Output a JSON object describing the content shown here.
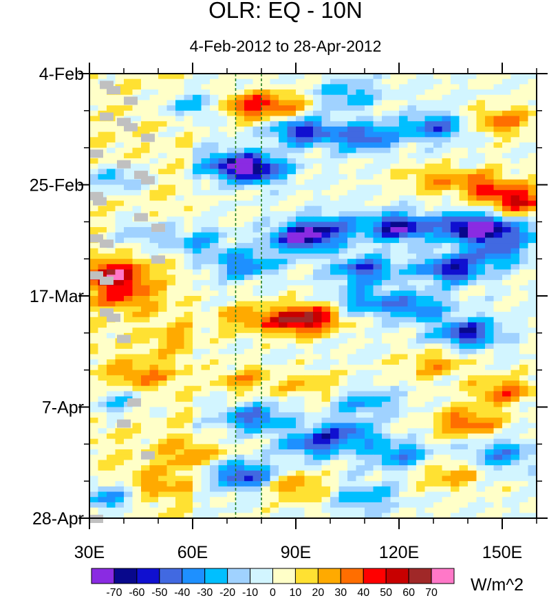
{
  "chart_data": {
    "type": "heatmap",
    "title": "OLR: EQ - 10N",
    "subtitle": "4-Feb-2012 to 28-Apr-2012",
    "x_axis": {
      "ticks": [
        30,
        60,
        90,
        120,
        150
      ],
      "tick_labels": [
        "30E",
        "60E",
        "90E",
        "120E",
        "150E"
      ],
      "range": [
        30,
        160
      ],
      "minor_step": 10
    },
    "y_axis": {
      "reversed": true,
      "range": [
        "2012-02-04",
        "2012-04-28"
      ],
      "ticks": [
        "2012-02-04",
        "2012-02-25",
        "2012-03-17",
        "2012-04-07",
        "2012-04-28"
      ],
      "tick_labels": [
        "4-Feb",
        "25-Feb",
        "17-Mar",
        "7-Apr",
        "28-Apr"
      ],
      "minor_step_days": 7
    },
    "reference_lines": [
      {
        "orientation": "vertical",
        "x": 72.5,
        "style": "dashed",
        "color": "#1e7d1e"
      },
      {
        "orientation": "vertical",
        "x": 80,
        "style": "dashed",
        "color": "#1e7d1e"
      }
    ],
    "colorbar": {
      "units": "W/m^2",
      "labels": [
        "-70",
        "-60",
        "-50",
        "-40",
        "-30",
        "-20",
        "-10",
        "0",
        "10",
        "20",
        "30",
        "40",
        "50",
        "60",
        "70"
      ],
      "colors": [
        "#8a2be2",
        "#08088c",
        "#1010d0",
        "#4169e1",
        "#1e90ff",
        "#00bfff",
        "#a0d2ff",
        "#d2f5ff",
        "#ffffc8",
        "#ffe132",
        "#ffaa00",
        "#ff6e00",
        "#ff0000",
        "#c80000",
        "#a02828",
        "#ff78c8"
      ]
    },
    "missing_color": "#c0c0c0",
    "features": [
      {
        "lon": 75,
        "day": 6,
        "value": 35
      },
      {
        "lon": 85,
        "day": 6,
        "value": 30
      },
      {
        "lon": 60,
        "day": 6,
        "value": -30
      },
      {
        "lon": 105,
        "day": 4,
        "value": -30
      },
      {
        "lon": 92,
        "day": 11,
        "value": -55
      },
      {
        "lon": 110,
        "day": 12,
        "value": -50
      },
      {
        "lon": 130,
        "day": 10,
        "value": -45
      },
      {
        "lon": 150,
        "day": 9,
        "value": 35
      },
      {
        "lon": 78,
        "day": 18,
        "value": -65
      },
      {
        "lon": 70,
        "day": 17,
        "value": -35
      },
      {
        "lon": 145,
        "day": 21,
        "value": 35
      },
      {
        "lon": 155,
        "day": 24,
        "value": 50
      },
      {
        "lon": 130,
        "day": 20,
        "value": 25
      },
      {
        "lon": 100,
        "day": 29,
        "value": -35
      },
      {
        "lon": 92,
        "day": 31,
        "value": -70
      },
      {
        "lon": 120,
        "day": 29,
        "value": -70
      },
      {
        "lon": 140,
        "day": 29,
        "value": -65
      },
      {
        "lon": 150,
        "day": 30,
        "value": -45
      },
      {
        "lon": 60,
        "day": 32,
        "value": -30
      },
      {
        "lon": 75,
        "day": 36,
        "value": -40
      },
      {
        "lon": 110,
        "day": 37,
        "value": -50
      },
      {
        "lon": 135,
        "day": 37,
        "value": -60
      },
      {
        "lon": 148,
        "day": 34,
        "value": -35
      },
      {
        "lon": 37,
        "day": 38,
        "value": 55
      },
      {
        "lon": 40,
        "day": 42,
        "value": 30
      },
      {
        "lon": 95,
        "day": 46,
        "value": 45
      },
      {
        "lon": 88,
        "day": 47,
        "value": 35
      },
      {
        "lon": 140,
        "day": 49,
        "value": -60
      },
      {
        "lon": 125,
        "day": 44,
        "value": -40
      },
      {
        "lon": 110,
        "day": 43,
        "value": -35
      },
      {
        "lon": 75,
        "day": 46,
        "value": 25
      },
      {
        "lon": 55,
        "day": 50,
        "value": 15
      },
      {
        "lon": 130,
        "day": 55,
        "value": 25
      },
      {
        "lon": 75,
        "day": 58,
        "value": 25
      },
      {
        "lon": 150,
        "day": 60,
        "value": 35
      },
      {
        "lon": 110,
        "day": 62,
        "value": -30
      },
      {
        "lon": 95,
        "day": 59,
        "value": 20
      },
      {
        "lon": 78,
        "day": 65,
        "value": -45
      },
      {
        "lon": 140,
        "day": 66,
        "value": 40
      },
      {
        "lon": 105,
        "day": 68,
        "value": -40
      },
      {
        "lon": 95,
        "day": 70,
        "value": -45
      },
      {
        "lon": 60,
        "day": 72,
        "value": 25
      },
      {
        "lon": 120,
        "day": 72,
        "value": -35
      },
      {
        "lon": 150,
        "day": 72,
        "value": -35
      },
      {
        "lon": 75,
        "day": 76,
        "value": -55
      },
      {
        "lon": 90,
        "day": 78,
        "value": 30
      },
      {
        "lon": 135,
        "day": 76,
        "value": 25
      },
      {
        "lon": 110,
        "day": 80,
        "value": -30
      },
      {
        "lon": 35,
        "day": 80,
        "value": -40
      },
      {
        "lon": 50,
        "day": 78,
        "value": 20
      },
      {
        "lon": 45,
        "day": 57,
        "value": 25
      },
      {
        "lon": 38,
        "day": 20,
        "value": -30
      },
      {
        "lon": 45,
        "day": 30,
        "value": -25
      },
      {
        "lon": 38,
        "day": 62,
        "value": -25
      }
    ],
    "missing_cells": [
      {
        "lon": 35,
        "day": 2
      },
      {
        "lon": 37,
        "day": 3
      },
      {
        "lon": 42,
        "day": 5
      },
      {
        "lon": 35,
        "day": 8
      },
      {
        "lon": 40,
        "day": 9
      },
      {
        "lon": 42,
        "day": 10
      },
      {
        "lon": 47,
        "day": 12
      },
      {
        "lon": 32,
        "day": 15
      },
      {
        "lon": 40,
        "day": 17
      },
      {
        "lon": 45,
        "day": 19
      },
      {
        "lon": 47,
        "day": 20
      },
      {
        "lon": 32,
        "day": 23
      },
      {
        "lon": 33,
        "day": 24
      },
      {
        "lon": 45,
        "day": 27
      },
      {
        "lon": 50,
        "day": 29
      },
      {
        "lon": 32,
        "day": 31
      },
      {
        "lon": 35,
        "day": 32
      },
      {
        "lon": 50,
        "day": 35
      },
      {
        "lon": 32,
        "day": 38
      },
      {
        "lon": 35,
        "day": 39
      },
      {
        "lon": 35,
        "day": 45
      },
      {
        "lon": 37,
        "day": 46
      },
      {
        "lon": 40,
        "day": 50
      },
      {
        "lon": 43,
        "day": 62
      },
      {
        "lon": 40,
        "day": 66
      },
      {
        "lon": 47,
        "day": 72
      },
      {
        "lon": 32,
        "day": 84
      }
    ]
  }
}
